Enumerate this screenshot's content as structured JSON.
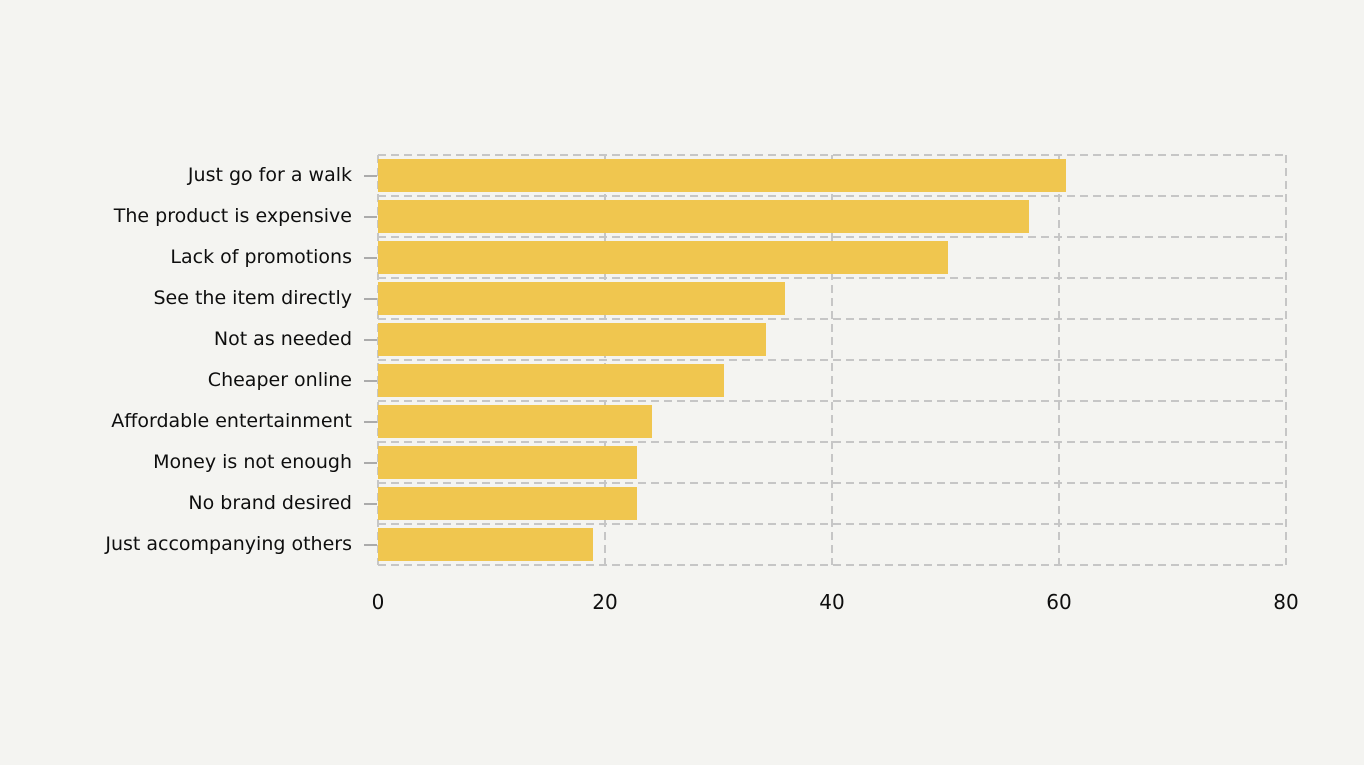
{
  "chart_data": {
    "type": "bar",
    "orientation": "horizontal",
    "title": "",
    "xlabel": "",
    "ylabel": "",
    "categories": [
      "Just go for a walk",
      "The product is expensive",
      "Lack of promotions",
      "See the item directly",
      "Not as needed",
      "Cheaper online",
      "Affordable entertainment",
      "Money is not enough",
      "No brand desired",
      "Just accompanying others"
    ],
    "values": [
      60.6,
      57.4,
      50.2,
      35.9,
      34.2,
      30.5,
      24.1,
      22.8,
      22.8,
      18.9
    ],
    "xlim": [
      0,
      80
    ],
    "xticks": [
      0,
      20,
      40,
      60,
      80
    ],
    "grid": "dashed",
    "legend": "none",
    "colors": {
      "bar": "#F0C64F",
      "background": "#F4F4F1",
      "gridline": "#C6C6C6",
      "tick_mark": "#ABABAB",
      "text": "#0E0E0E"
    }
  }
}
